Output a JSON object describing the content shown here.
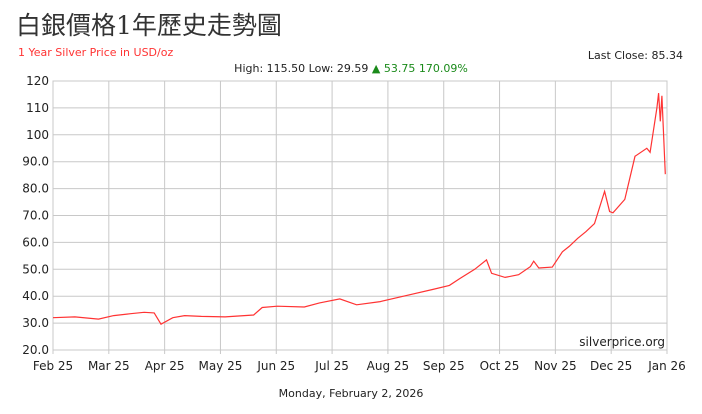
{
  "header": {
    "title": "白銀價格1年歷史走勢圖",
    "subtitle": "1 Year Silver Price in USD/oz",
    "last_close": "Last Close: 85.34",
    "high_low": "High: 115.50 Low: 29.59",
    "change_arrow": "▲",
    "change": "53.75 170.09%"
  },
  "footer": {
    "date": "Monday, February 2, 2026"
  },
  "chart_data": {
    "type": "line",
    "title": "",
    "xlabel": "",
    "ylabel": "",
    "xlim": [
      "2025-02-02",
      "2026-02-01"
    ],
    "ylim": [
      20,
      120
    ],
    "grid": true,
    "watermark": "silverprice.org",
    "line_color": "#ff3333",
    "x_ticks": [
      "Feb 25",
      "Mar 25",
      "Apr 25",
      "May 25",
      "Jun 25",
      "Jul 25",
      "Aug 25",
      "Sep 25",
      "Oct 25",
      "Nov 25",
      "Dec 25",
      "Jan 26"
    ],
    "y_ticks": [
      "20.0",
      "30.0",
      "40.0",
      "50.0",
      "60.0",
      "70.0",
      "80.0",
      "90.0",
      "100",
      "110",
      "120"
    ],
    "series": [
      {
        "x": [
          "2025-02-02",
          "2025-02-15",
          "2025-03-01",
          "2025-03-10",
          "2025-03-20",
          "2025-03-28",
          "2025-04-03",
          "2025-04-07",
          "2025-04-14",
          "2025-04-21",
          "2025-05-01",
          "2025-05-15",
          "2025-06-01",
          "2025-06-06",
          "2025-06-15",
          "2025-07-01",
          "2025-07-10",
          "2025-07-22",
          "2025-08-01",
          "2025-08-15",
          "2025-09-01",
          "2025-09-15",
          "2025-09-25",
          "2025-10-01",
          "2025-10-10",
          "2025-10-17",
          "2025-10-20",
          "2025-10-28",
          "2025-11-05",
          "2025-11-12",
          "2025-11-14",
          "2025-11-17",
          "2025-11-25",
          "2025-12-01",
          "2025-12-05",
          "2025-12-10",
          "2025-12-15",
          "2025-12-20",
          "2025-12-26",
          "2025-12-29",
          "2025-12-31",
          "2026-01-07",
          "2026-01-13",
          "2026-01-20",
          "2026-01-22",
          "2026-01-26",
          "2026-01-27",
          "2026-01-28",
          "2026-01-29",
          "2026-01-31"
        ],
        "y": [
          32.0,
          32.3,
          31.5,
          32.8,
          33.5,
          34.0,
          33.8,
          29.6,
          32.0,
          32.8,
          32.5,
          32.3,
          33.0,
          35.8,
          36.3,
          36.0,
          37.5,
          39.0,
          36.8,
          38.0,
          40.5,
          42.5,
          44.0,
          46.5,
          50.0,
          53.5,
          48.5,
          47.0,
          48.0,
          51.0,
          53.0,
          50.5,
          50.8,
          56.5,
          58.5,
          61.5,
          64.0,
          67.0,
          79.0,
          71.5,
          71.0,
          76.0,
          92.0,
          95.0,
          93.5,
          110.0,
          115.5,
          105.0,
          114.5,
          85.34
        ]
      }
    ]
  }
}
